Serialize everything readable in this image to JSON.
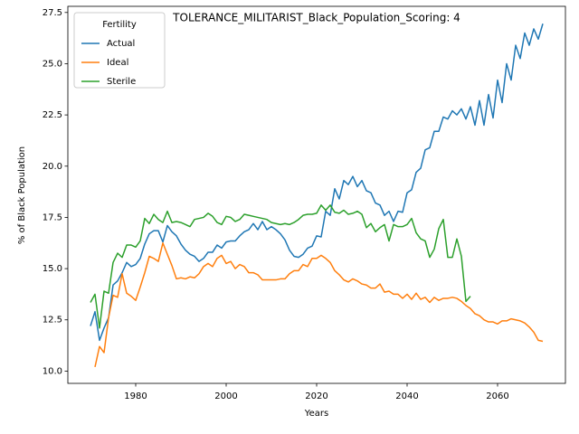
{
  "chart_data": {
    "type": "line",
    "title": "TOLERANCE_MILITARIST_Black_Population_Scoring: 4",
    "xlabel": "Years",
    "ylabel": "% of Black Population",
    "legend_title": "Fertility",
    "legend": "upper left",
    "grid": false,
    "x": [
      1970,
      1971,
      1972,
      1973,
      1974,
      1975,
      1976,
      1977,
      1978,
      1979,
      1980,
      1981,
      1982,
      1983,
      1984,
      1985,
      1986,
      1987,
      1988,
      1989,
      1990,
      1991,
      1992,
      1993,
      1994,
      1995,
      1996,
      1997,
      1998,
      1999,
      2000,
      2001,
      2002,
      2003,
      2004,
      2005,
      2006,
      2007,
      2008,
      2009,
      2010,
      2011,
      2012,
      2013,
      2014,
      2015,
      2016,
      2017,
      2018,
      2019,
      2020,
      2021,
      2022,
      2023,
      2024,
      2025,
      2026,
      2027,
      2028,
      2029,
      2030,
      2031,
      2032,
      2033,
      2034,
      2035,
      2036,
      2037,
      2038,
      2039,
      2040,
      2041,
      2042,
      2043,
      2044,
      2045,
      2046,
      2047,
      2048,
      2049,
      2050,
      2051,
      2052,
      2053,
      2054,
      2055,
      2056,
      2057,
      2058,
      2059,
      2060,
      2061,
      2062,
      2063,
      2064,
      2065,
      2066,
      2067,
      2068,
      2069,
      2070
    ],
    "series": [
      {
        "name": "Actual",
        "color": "#1f77b4",
        "values": [
          12.2,
          12.9,
          11.5,
          12.1,
          12.6,
          14.2,
          14.4,
          14.8,
          15.3,
          15.1,
          15.2,
          15.5,
          16.2,
          16.7,
          16.85,
          16.85,
          16.3,
          17.1,
          16.8,
          16.6,
          16.2,
          15.9,
          15.7,
          15.6,
          15.35,
          15.5,
          15.8,
          15.8,
          16.15,
          16.0,
          16.3,
          16.35,
          16.35,
          16.6,
          16.8,
          16.9,
          17.2,
          16.9,
          17.3,
          16.9,
          17.05,
          16.9,
          16.7,
          16.4,
          15.9,
          15.6,
          15.55,
          15.7,
          16.0,
          16.1,
          16.6,
          16.55,
          17.8,
          17.6,
          18.9,
          18.4,
          19.3,
          19.1,
          19.5,
          19.0,
          19.3,
          18.8,
          18.7,
          18.2,
          18.1,
          17.6,
          17.8,
          17.3,
          17.8,
          17.75,
          18.7,
          18.85,
          19.7,
          19.9,
          20.8,
          20.9,
          21.7,
          21.7,
          22.4,
          22.3,
          22.7,
          22.5,
          22.8,
          22.3,
          22.9,
          22.0,
          23.2,
          22.0,
          23.5,
          22.35,
          24.2,
          23.1,
          25.0,
          24.2,
          25.9,
          25.25,
          26.5,
          25.9,
          26.7,
          26.2,
          26.95
        ]
      },
      {
        "name": "Ideal",
        "color": "#ff7f0e",
        "values": [
          null,
          10.2,
          11.2,
          10.9,
          12.6,
          13.7,
          13.6,
          14.75,
          13.8,
          13.65,
          13.45,
          14.1,
          14.8,
          15.6,
          15.5,
          15.35,
          16.25,
          15.7,
          15.15,
          14.5,
          14.55,
          14.5,
          14.6,
          14.55,
          14.75,
          15.1,
          15.25,
          15.1,
          15.5,
          15.65,
          15.25,
          15.35,
          15.0,
          15.2,
          15.1,
          14.8,
          14.8,
          14.7,
          14.45,
          14.45,
          14.45,
          14.45,
          14.5,
          14.5,
          14.75,
          14.9,
          14.9,
          15.2,
          15.1,
          15.5,
          15.5,
          15.65,
          15.5,
          15.3,
          14.9,
          14.7,
          14.45,
          14.35,
          14.5,
          14.4,
          14.25,
          14.2,
          14.05,
          14.05,
          14.25,
          13.85,
          13.9,
          13.75,
          13.75,
          13.55,
          13.75,
          13.5,
          13.8,
          13.5,
          13.6,
          13.35,
          13.6,
          13.45,
          13.55,
          13.55,
          13.6,
          13.55,
          13.4,
          13.2,
          13.05,
          12.8,
          12.7,
          12.5,
          12.4,
          12.4,
          12.3,
          12.45,
          12.45,
          12.55,
          12.5,
          12.45,
          12.35,
          12.15,
          11.9,
          11.5,
          11.45
        ]
      },
      {
        "name": "Sterile",
        "color": "#2ca02c",
        "values": [
          13.35,
          13.75,
          12.1,
          13.9,
          13.8,
          15.3,
          15.75,
          15.55,
          16.15,
          16.15,
          16.05,
          16.35,
          17.45,
          17.2,
          17.65,
          17.4,
          17.25,
          17.8,
          17.25,
          17.3,
          17.25,
          17.15,
          17.05,
          17.4,
          17.45,
          17.5,
          17.7,
          17.55,
          17.25,
          17.15,
          17.55,
          17.5,
          17.3,
          17.4,
          17.65,
          17.6,
          17.55,
          17.5,
          17.45,
          17.4,
          17.25,
          17.2,
          17.15,
          17.2,
          17.15,
          17.25,
          17.4,
          17.6,
          17.65,
          17.65,
          17.7,
          18.1,
          17.85,
          18.1,
          17.75,
          17.7,
          17.85,
          17.65,
          17.7,
          17.8,
          17.65,
          17.0,
          17.2,
          16.8,
          17.0,
          17.15,
          16.35,
          17.15,
          17.05,
          17.05,
          17.15,
          17.45,
          16.75,
          16.45,
          16.35,
          15.55,
          15.95,
          16.95,
          17.4,
          15.55,
          15.55,
          16.45,
          15.6,
          13.4,
          13.65,
          null,
          null,
          null,
          null,
          null,
          null,
          null,
          null,
          null,
          null,
          null,
          null,
          null,
          null,
          null,
          null
        ]
      }
    ],
    "xlim": [
      1965,
      2075
    ],
    "xticks": [
      1980,
      2000,
      2020,
      2040,
      2060
    ],
    "ylim": [
      9.4,
      27.8
    ],
    "yticks": [
      {
        "value": 10,
        "label": "10.0"
      },
      12.5,
      {
        "value": 15,
        "label": "15.0"
      },
      17.5,
      {
        "value": 20,
        "label": "20.0"
      },
      22.5,
      {
        "value": 25,
        "label": "25.0"
      },
      27.5
    ]
  }
}
